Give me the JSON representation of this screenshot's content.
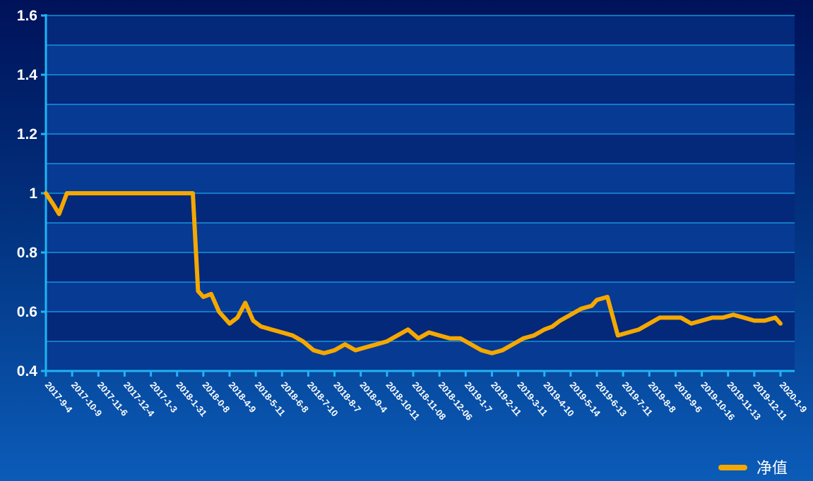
{
  "chart_data": {
    "type": "line",
    "ylim": [
      0.4,
      1.6
    ],
    "yticks": [
      "0.4",
      "0.6",
      "0.8",
      "1",
      "1.2",
      "1.4",
      "1.6"
    ],
    "ytick_values": [
      0.4,
      0.6,
      0.8,
      1.0,
      1.2,
      1.4,
      1.6
    ],
    "grid": true,
    "legend_position": "bottom-right",
    "x_tick_labels": [
      "2017-9-4",
      "2017-10-9",
      "2017-11-6",
      "2017-12-4",
      "2017-1-3",
      "2018-1-31",
      "2018-0-8",
      "2018-4-9",
      "2018-5-11",
      "2018-6-8",
      "2018-7-10",
      "2018-8-7",
      "2018-9-4",
      "2018-10-11",
      "2018-11-08",
      "2018-12-06",
      "2019-1-7",
      "2019-2-11",
      "2019-3-11",
      "2019-4-10",
      "2019-5-14",
      "2019-6-13",
      "2019-7-11",
      "2019-8-8",
      "2019-9-6",
      "2019-10-16",
      "2019-11-13",
      "2019-12-11",
      "2020-1-9"
    ],
    "series": [
      {
        "name": "净值",
        "color": "#f5a800",
        "x": [
          0,
          0.3,
          0.5,
          0.8,
          1,
          2,
          3,
          4,
          5,
          5.4,
          5.6,
          5.8,
          6,
          6.3,
          6.6,
          7,
          7.3,
          7.6,
          7.9,
          8.2,
          8.6,
          9,
          9.4,
          9.8,
          10.2,
          10.6,
          11,
          11.4,
          11.8,
          12.2,
          12.6,
          13,
          13.4,
          13.8,
          14.2,
          14.6,
          15,
          15.4,
          15.8,
          16.2,
          16.6,
          17,
          17.4,
          17.8,
          18.2,
          18.6,
          19,
          19.3,
          19.6,
          20,
          20.4,
          20.8,
          21,
          21.4,
          21.8,
          22.2,
          22.6,
          23,
          23.4,
          23.8,
          24.2,
          24.6,
          25,
          25.4,
          25.8,
          26.2,
          26.6,
          27,
          27.4,
          27.8,
          28
        ],
        "values": [
          1.0,
          0.96,
          0.93,
          1.0,
          1.0,
          1.0,
          1.0,
          1.0,
          1.0,
          1.0,
          1.0,
          0.67,
          0.65,
          0.66,
          0.6,
          0.56,
          0.58,
          0.63,
          0.57,
          0.55,
          0.54,
          0.53,
          0.52,
          0.5,
          0.47,
          0.46,
          0.47,
          0.49,
          0.47,
          0.48,
          0.49,
          0.5,
          0.52,
          0.54,
          0.51,
          0.53,
          0.52,
          0.51,
          0.51,
          0.49,
          0.47,
          0.46,
          0.47,
          0.49,
          0.51,
          0.52,
          0.54,
          0.55,
          0.57,
          0.59,
          0.61,
          0.62,
          0.64,
          0.65,
          0.52,
          0.53,
          0.54,
          0.56,
          0.58,
          0.58,
          0.58,
          0.56,
          0.57,
          0.58,
          0.58,
          0.59,
          0.58,
          0.57,
          0.57,
          0.58,
          0.56
        ]
      }
    ]
  }
}
